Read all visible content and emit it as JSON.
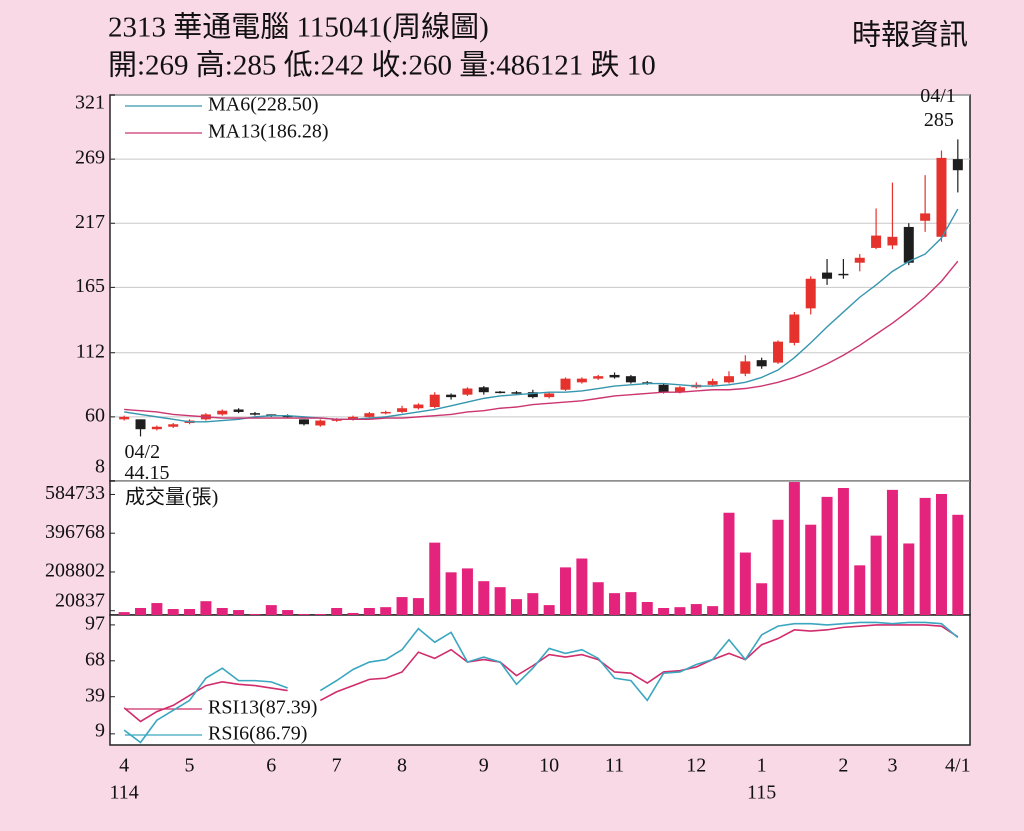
{
  "header": {
    "title": "2313  華通電腦 115041(周線圖)",
    "source": "時報資訊",
    "quote": "開:269 高:285 低:242 收:260 量:486121 跌 10"
  },
  "chart_data": [
    {
      "type": "candlestick",
      "open": [
        58,
        58,
        50,
        52,
        55,
        58,
        62,
        66,
        63,
        62,
        61,
        58,
        53,
        57,
        58,
        60,
        63,
        64,
        67,
        68,
        78,
        78,
        84,
        80.5,
        80,
        80,
        76,
        82,
        88,
        91,
        94,
        93,
        88,
        86,
        80,
        84,
        86,
        88,
        95,
        106,
        104,
        120,
        148,
        177,
        176,
        185,
        197,
        199,
        214,
        219,
        206,
        269
      ],
      "high": [
        61,
        58,
        53,
        55,
        58,
        63,
        66,
        67,
        64,
        62,
        62,
        58,
        58,
        59,
        61,
        64,
        65,
        69,
        71,
        80,
        79,
        84,
        85,
        81,
        81,
        82,
        80,
        92,
        92,
        94,
        96,
        94,
        89,
        87,
        85,
        88,
        91,
        97,
        110,
        108,
        122,
        145,
        174,
        188,
        188,
        192,
        229,
        250,
        217,
        256,
        276,
        285
      ],
      "low": [
        57,
        44.15,
        49,
        51,
        54,
        57,
        61,
        63,
        61,
        60,
        59,
        53,
        52,
        56,
        57,
        59,
        62,
        63,
        66,
        67,
        74,
        77,
        78,
        79,
        78,
        75,
        75,
        81,
        87,
        90,
        91,
        87,
        86,
        79,
        79,
        83,
        85,
        87,
        93,
        99,
        103,
        118,
        143,
        167,
        172,
        178,
        196,
        196,
        183,
        210,
        202,
        242
      ],
      "close": [
        60,
        50,
        52,
        54,
        57,
        62,
        65,
        64,
        62,
        61,
        60,
        54,
        57,
        58,
        60,
        63,
        64,
        67,
        70,
        78,
        76,
        83,
        80,
        80,
        79,
        76,
        79,
        91,
        91,
        93,
        92,
        88,
        87,
        80,
        84,
        86,
        89,
        93,
        105,
        101,
        121,
        143,
        172,
        172,
        175,
        189,
        207,
        206,
        185,
        225,
        270,
        260
      ],
      "up_color": "#e5322d",
      "down_color": "#1e1e1e",
      "ylim": [
        8,
        321
      ],
      "yticks": [
        8,
        60,
        112,
        165,
        217,
        269,
        321
      ],
      "grid": true,
      "lines": [
        {
          "name": "MA6(228.50)",
          "color": "#3596ae",
          "values": [
            64,
            62,
            60,
            58,
            56,
            56,
            57,
            58,
            60,
            61,
            61,
            60,
            59,
            58,
            58,
            59,
            60,
            62,
            64,
            66,
            69,
            72,
            75,
            77,
            78,
            79,
            80,
            80,
            81,
            83,
            85,
            86,
            87,
            87,
            86,
            85,
            85,
            86,
            88,
            92,
            98,
            108,
            120,
            133,
            145,
            157,
            167,
            178,
            186,
            192,
            205,
            228.5
          ]
        },
        {
          "name": "MA13(186.28)",
          "color": "#cc3570",
          "values": [
            66,
            65,
            64,
            62,
            61,
            60,
            59,
            59,
            59,
            59,
            59,
            59,
            59,
            58,
            58,
            58,
            59,
            59,
            60,
            61,
            62,
            64,
            65,
            67,
            68,
            70,
            71,
            72,
            73,
            75,
            77,
            78,
            79,
            80,
            80,
            81,
            82,
            82,
            83,
            85,
            88,
            92,
            97,
            103,
            110,
            118,
            127,
            136,
            146,
            157,
            170,
            186.28
          ]
        }
      ],
      "annotations": [
        {
          "date": "04/2",
          "value": 44.15,
          "at": "low"
        },
        {
          "date": "04/1",
          "value": 285,
          "at": "high"
        }
      ]
    },
    {
      "type": "bar",
      "series": [
        {
          "name": "成交量(張)",
          "color": "#e3237c",
          "values": [
            14000,
            34000,
            58000,
            29000,
            29000,
            67000,
            34000,
            24000,
            5000,
            48000,
            24000,
            5000,
            5000,
            34000,
            10000,
            34000,
            38000,
            87000,
            82000,
            351000,
            207000,
            226000,
            164000,
            135000,
            77000,
            106000,
            48000,
            231000,
            274000,
            159000,
            106000,
            111000,
            63000,
            34000,
            38000,
            53000,
            43000,
            496000,
            303000,
            154000,
            462000,
            645000,
            438000,
            573000,
            616000,
            241000,
            385000,
            607000,
            347000,
            568000,
            587000,
            486121
          ]
        }
      ],
      "ylim": [
        0,
        650000
      ],
      "yticks": [
        20837,
        208802,
        396768,
        584733
      ],
      "grid": false
    },
    {
      "type": "line",
      "categories": [
        "4",
        null,
        null,
        null,
        "5",
        null,
        null,
        null,
        null,
        "6",
        null,
        null,
        null,
        "7",
        null,
        null,
        null,
        "8",
        null,
        null,
        null,
        null,
        "9",
        null,
        null,
        null,
        "10",
        null,
        null,
        null,
        "11",
        null,
        null,
        null,
        null,
        "12",
        null,
        null,
        null,
        "1",
        null,
        null,
        null,
        null,
        "2",
        null,
        null,
        "3",
        null,
        null,
        null,
        "4/1"
      ],
      "category_years": [
        "114",
        null,
        null,
        null,
        null,
        null,
        null,
        null,
        null,
        null,
        null,
        null,
        null,
        null,
        null,
        null,
        null,
        null,
        null,
        null,
        null,
        null,
        null,
        null,
        null,
        null,
        null,
        null,
        null,
        null,
        null,
        null,
        null,
        null,
        null,
        null,
        null,
        null,
        null,
        "115",
        null,
        null,
        null,
        null,
        null,
        null,
        null,
        null,
        null,
        null,
        null,
        null
      ],
      "series": [
        {
          "name": "RSI13(87.39)",
          "color": "#d12c6b",
          "values": [
            30,
            19,
            27,
            32,
            40,
            48,
            51,
            49,
            48,
            46,
            44,
            null,
            36,
            43,
            48,
            53,
            54,
            59,
            75,
            70,
            77,
            67,
            69,
            67,
            56,
            64,
            73,
            71,
            73,
            69,
            59,
            58,
            50,
            59,
            60,
            63,
            69,
            74,
            69,
            81,
            86,
            93,
            92,
            93,
            95,
            96,
            97,
            97,
            97,
            97,
            96,
            87.39
          ]
        },
        {
          "name": "RSI6(86.79)",
          "color": "#3aa6c0",
          "values": [
            12,
            2,
            20,
            28,
            36,
            54,
            62,
            52,
            52,
            51,
            46,
            null,
            44,
            52,
            61,
            67,
            69,
            77,
            94,
            83,
            91,
            67,
            71,
            67,
            49,
            62,
            78,
            74,
            77,
            70,
            54,
            52,
            36,
            58,
            59,
            65,
            69,
            85,
            69,
            89,
            96,
            98,
            98,
            97,
            98,
            99,
            99,
            98,
            99,
            99,
            98,
            86.79
          ]
        }
      ],
      "ylim": [
        0,
        105
      ],
      "yticks": [
        9,
        39,
        68,
        97
      ],
      "grid": false
    }
  ]
}
